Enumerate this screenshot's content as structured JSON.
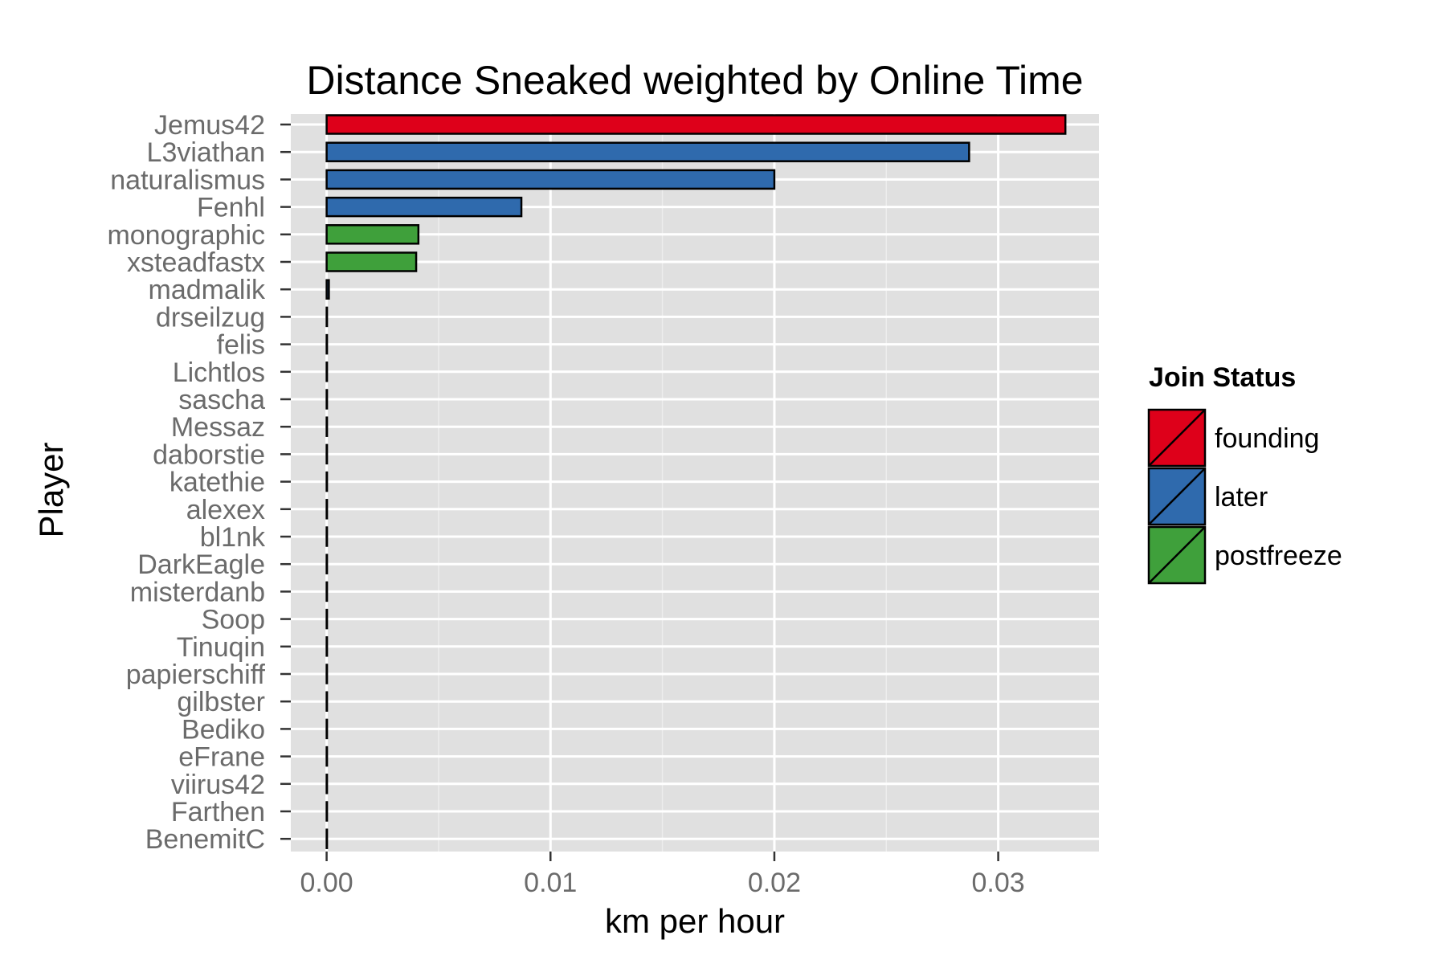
{
  "chart_data": {
    "type": "bar",
    "orientation": "horizontal",
    "title": "Distance Sneaked weighted by Online Time",
    "xlabel": "km per hour",
    "ylabel": "Player",
    "xlim": [
      -0.0016,
      0.0345
    ],
    "x_ticks": [
      0.0,
      0.01,
      0.02,
      0.03
    ],
    "x_tick_labels": [
      "0.00",
      "0.01",
      "0.02",
      "0.03"
    ],
    "grid": true,
    "legend": {
      "title": "Join Status",
      "placement": "right",
      "entries": [
        {
          "label": "founding",
          "color": "#de001a"
        },
        {
          "label": "later",
          "color": "#2f6aad"
        },
        {
          "label": "postfreeze",
          "color": "#3fa03b"
        }
      ]
    },
    "categories": [
      "Jemus42",
      "L3viathan",
      "naturalismus",
      "Fenhl",
      "monographic",
      "xsteadfastx",
      "madmalik",
      "drseilzug",
      "felis",
      "Lichtlos",
      "sascha",
      "Messaz",
      "daborstie",
      "katethie",
      "alexex",
      "bl1nk",
      "DarkEagle",
      "misterdanb",
      "Soop",
      "Tinuqin",
      "papierschiff",
      "gilbster",
      "Bediko",
      "eFrane",
      "viirus42",
      "Farthen",
      "BenemitC"
    ],
    "values": [
      0.033,
      0.0287,
      0.02,
      0.0087,
      0.0041,
      0.004,
      0.0001,
      0.0,
      0.0,
      0.0,
      0.0,
      0.0,
      0.0,
      0.0,
      0.0,
      0.0,
      0.0,
      0.0,
      0.0,
      0.0,
      0.0,
      0.0,
      0.0,
      0.0,
      0.0,
      0.0,
      0.0
    ],
    "groups": [
      "founding",
      "later",
      "later",
      "later",
      "postfreeze",
      "postfreeze",
      "later",
      "later",
      "later",
      "later",
      "later",
      "later",
      "later",
      "later",
      "later",
      "later",
      "later",
      "later",
      "later",
      "later",
      "later",
      "later",
      "later",
      "later",
      "later",
      "later",
      "later"
    ]
  },
  "colors": {
    "panel_background": "#e0e0e0",
    "grid_major": "#ffffff",
    "grid_minor": "#ededed",
    "bar_outline": "#000000"
  }
}
